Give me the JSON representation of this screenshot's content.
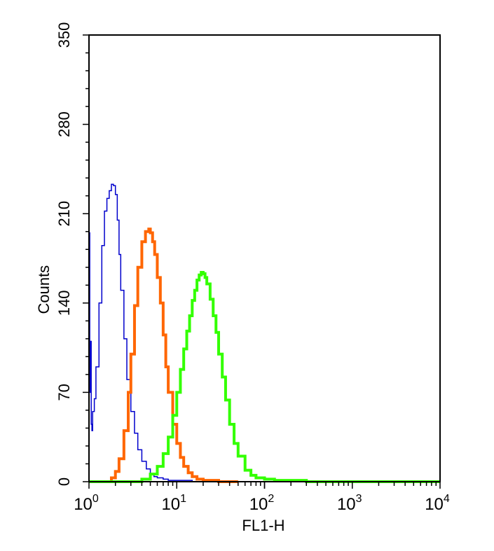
{
  "chart_data": {
    "type": "line",
    "xlabel": "FL1-H",
    "ylabel": "Counts",
    "xscale": "log",
    "xlim": [
      1,
      10000
    ],
    "ylim": [
      0,
      350
    ],
    "y_ticks": [
      {
        "value": 0,
        "label": "0"
      },
      {
        "value": 70,
        "label": "70"
      },
      {
        "value": 140,
        "label": "140"
      },
      {
        "value": 210,
        "label": "210"
      },
      {
        "value": 280,
        "label": "280"
      },
      {
        "value": 350,
        "label": "350"
      }
    ],
    "x_ticks": [
      {
        "value": 1,
        "base": "10",
        "exp": "0"
      },
      {
        "value": 10,
        "base": "10",
        "exp": "1"
      },
      {
        "value": 100,
        "base": "10",
        "exp": "2"
      },
      {
        "value": 1000,
        "base": "10",
        "exp": "3"
      },
      {
        "value": 10000,
        "base": "10",
        "exp": "4"
      }
    ],
    "grid": false,
    "legend": "none",
    "series": [
      {
        "color": "#0000cc",
        "line_width": 1.5,
        "x": [
          1.0,
          1.02,
          1.04,
          1.06,
          1.08,
          1.1,
          1.15,
          1.2,
          1.3,
          1.4,
          1.5,
          1.6,
          1.7,
          1.8,
          1.9,
          2.0,
          2.1,
          2.2,
          2.3,
          2.5,
          2.7,
          3.0,
          3.3,
          3.6,
          4.0,
          4.5,
          5.0,
          5.5,
          6.0,
          7.0,
          8.0,
          10.0,
          15.0,
          20.0,
          25.0
        ],
        "y": [
          195,
          70,
          110,
          45,
          40,
          55,
          65,
          90,
          140,
          185,
          212,
          222,
          228,
          233,
          232,
          225,
          205,
          178,
          150,
          112,
          80,
          55,
          38,
          25,
          16,
          10,
          6,
          4,
          3,
          2,
          1,
          1,
          0,
          0,
          0
        ]
      },
      {
        "color": "#ff6600",
        "line_width": 4,
        "x": [
          1.0,
          1.5,
          1.8,
          2.0,
          2.2,
          2.5,
          2.8,
          3.0,
          3.3,
          3.6,
          4.0,
          4.4,
          4.8,
          5.0,
          5.3,
          5.6,
          6.0,
          6.5,
          7.0,
          7.5,
          8.0,
          9.0,
          10.0,
          11.0,
          12.0,
          13.5,
          15.0,
          17.0,
          20.0,
          25.0,
          30.0,
          50.0
        ],
        "y": [
          0,
          0,
          3,
          8,
          18,
          40,
          70,
          100,
          138,
          168,
          188,
          196,
          198,
          195,
          188,
          178,
          160,
          140,
          115,
          90,
          70,
          45,
          30,
          19,
          12,
          7,
          4,
          2,
          1,
          1,
          0,
          0
        ]
      },
      {
        "color": "#33ff00",
        "line_width": 4,
        "x": [
          1.0,
          3.0,
          4.0,
          5.0,
          6.0,
          7.0,
          8.0,
          9.0,
          10.0,
          11.0,
          12.0,
          13.0,
          14.0,
          15.0,
          16.0,
          17.0,
          18.0,
          19.0,
          20.0,
          21.0,
          22.0,
          24.0,
          26.0,
          28.0,
          30.0,
          33.0,
          36.0,
          40.0,
          45.0,
          50.0,
          60.0,
          70.0,
          80.0,
          100.0,
          130.0,
          200.0,
          300.0,
          1000.0,
          10000.0
        ],
        "y": [
          0,
          0,
          2,
          6,
          12,
          22,
          35,
          52,
          70,
          88,
          104,
          118,
          130,
          142,
          150,
          158,
          162,
          164,
          163,
          160,
          155,
          143,
          130,
          117,
          100,
          82,
          64,
          45,
          30,
          20,
          9,
          5,
          3,
          2,
          1,
          1,
          0,
          0,
          0
        ]
      }
    ]
  }
}
